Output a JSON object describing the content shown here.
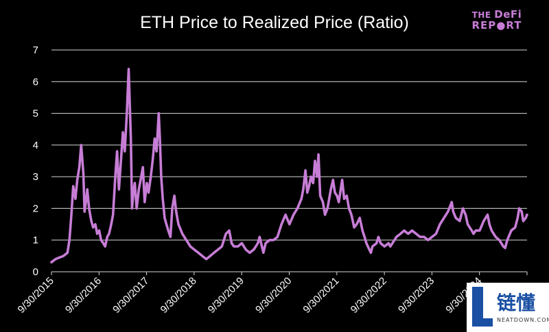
{
  "logo": {
    "line1_prefix": "THE ",
    "line1_brand": "DeFi",
    "line2": "REP●RT"
  },
  "watermark": {
    "cn": "链懂",
    "en": "NEATDOWN.COM"
  },
  "colors": {
    "background": "#000000",
    "line": "#c77dd6",
    "grid": "#d9d9d9",
    "text": "#ffffff"
  },
  "chart_data": {
    "type": "line",
    "title": "ETH Price to Realized Price (Ratio)",
    "xlabel": "",
    "ylabel": "",
    "ylim": [
      0,
      7
    ],
    "yticks": [
      "0",
      "1",
      "2",
      "3",
      "4",
      "5",
      "6",
      "7"
    ],
    "xlim": [
      "2015-09-30",
      "2025-09-30"
    ],
    "xticks": [
      "9/30/2015",
      "9/30/2016",
      "9/30/2017",
      "9/30/2018",
      "9/30/2019",
      "9/30/2020",
      "9/30/2021",
      "9/30/2022",
      "9/30/2023",
      "9/30/2024"
    ],
    "grid": "horizontal",
    "legend": "none",
    "series": [
      {
        "name": "",
        "x": [
          "2015-09-30",
          "2015-10-31",
          "2015-11-30",
          "2015-12-31",
          "2016-01-31",
          "2016-02-15",
          "2016-03-01",
          "2016-03-15",
          "2016-04-01",
          "2016-04-15",
          "2016-05-01",
          "2016-05-15",
          "2016-06-01",
          "2016-06-10",
          "2016-06-20",
          "2016-07-01",
          "2016-07-15",
          "2016-08-01",
          "2016-08-15",
          "2016-09-01",
          "2016-09-15",
          "2016-10-01",
          "2016-10-15",
          "2016-11-01",
          "2016-11-15",
          "2016-12-01",
          "2016-12-15",
          "2017-01-01",
          "2017-01-15",
          "2017-02-01",
          "2017-02-15",
          "2017-03-01",
          "2017-03-15",
          "2017-04-01",
          "2017-04-15",
          "2017-05-01",
          "2017-05-15",
          "2017-06-01",
          "2017-06-10",
          "2017-06-20",
          "2017-07-01",
          "2017-07-15",
          "2017-08-01",
          "2017-08-15",
          "2017-09-01",
          "2017-09-15",
          "2017-10-01",
          "2017-10-15",
          "2017-11-01",
          "2017-11-15",
          "2017-12-01",
          "2017-12-15",
          "2018-01-01",
          "2018-01-10",
          "2018-01-20",
          "2018-02-01",
          "2018-02-15",
          "2018-03-01",
          "2018-03-15",
          "2018-04-01",
          "2018-04-15",
          "2018-05-01",
          "2018-05-15",
          "2018-06-01",
          "2018-07-01",
          "2018-08-01",
          "2018-09-01",
          "2018-10-01",
          "2018-11-01",
          "2018-12-01",
          "2019-01-01",
          "2019-02-01",
          "2019-03-01",
          "2019-04-01",
          "2019-05-01",
          "2019-06-01",
          "2019-06-26",
          "2019-07-15",
          "2019-08-01",
          "2019-09-01",
          "2019-10-01",
          "2019-11-01",
          "2019-12-01",
          "2020-01-01",
          "2020-02-01",
          "2020-02-15",
          "2020-03-15",
          "2020-04-01",
          "2020-05-01",
          "2020-06-01",
          "2020-07-01",
          "2020-08-01",
          "2020-09-01",
          "2020-10-01",
          "2020-11-01",
          "2020-12-01",
          "2021-01-01",
          "2021-01-15",
          "2021-02-01",
          "2021-02-15",
          "2021-03-01",
          "2021-03-15",
          "2021-04-01",
          "2021-04-15",
          "2021-05-01",
          "2021-05-12",
          "2021-05-25",
          "2021-06-15",
          "2021-07-01",
          "2021-07-20",
          "2021-08-15",
          "2021-09-01",
          "2021-09-15",
          "2021-10-01",
          "2021-10-15",
          "2021-11-10",
          "2021-11-25",
          "2021-12-15",
          "2022-01-01",
          "2022-01-20",
          "2022-02-10",
          "2022-03-01",
          "2022-03-25",
          "2022-04-15",
          "2022-05-01",
          "2022-05-15",
          "2022-06-01",
          "2022-06-18",
          "2022-07-01",
          "2022-08-01",
          "2022-08-15",
          "2022-09-01",
          "2022-10-01",
          "2022-11-01",
          "2022-11-15",
          "2022-12-01",
          "2023-01-01",
          "2023-02-01",
          "2023-03-01",
          "2023-04-01",
          "2023-05-01",
          "2023-06-01",
          "2023-07-01",
          "2023-08-01",
          "2023-09-01",
          "2023-10-01",
          "2023-11-01",
          "2023-12-01",
          "2024-01-01",
          "2024-02-01",
          "2024-03-01",
          "2024-03-12",
          "2024-04-01",
          "2024-05-01",
          "2024-05-25",
          "2024-06-15",
          "2024-07-01",
          "2024-08-01",
          "2024-08-15",
          "2024-09-01",
          "2024-10-01",
          "2024-11-01",
          "2024-12-01",
          "2024-12-15",
          "2025-01-01",
          "2025-02-01",
          "2025-03-01",
          "2025-04-01",
          "2025-04-15",
          "2025-05-01",
          "2025-06-01",
          "2025-07-01",
          "2025-07-20",
          "2025-08-01",
          "2025-08-20",
          "2025-09-01",
          "2025-09-20",
          "2025-09-30"
        ],
        "values": [
          0.3,
          0.4,
          0.45,
          0.5,
          0.6,
          1.0,
          1.8,
          2.7,
          2.3,
          2.9,
          3.3,
          4.0,
          3.1,
          1.9,
          2.2,
          2.6,
          2.0,
          1.6,
          1.4,
          1.5,
          1.2,
          1.3,
          1.0,
          0.9,
          0.8,
          1.1,
          1.2,
          1.5,
          1.8,
          3.0,
          3.8,
          2.6,
          3.4,
          4.4,
          3.8,
          5.0,
          6.4,
          4.2,
          2.0,
          2.5,
          2.8,
          2.0,
          2.6,
          2.9,
          3.3,
          2.2,
          2.8,
          2.5,
          3.0,
          3.5,
          4.2,
          3.8,
          5.0,
          4.2,
          3.0,
          2.3,
          1.7,
          1.5,
          1.3,
          1.1,
          2.0,
          2.4,
          1.9,
          1.5,
          1.2,
          1.0,
          0.8,
          0.7,
          0.6,
          0.5,
          0.4,
          0.5,
          0.6,
          0.7,
          0.8,
          1.2,
          1.3,
          0.9,
          0.8,
          0.8,
          0.9,
          0.7,
          0.6,
          0.7,
          0.9,
          1.1,
          0.6,
          0.9,
          1.0,
          1.0,
          1.1,
          1.5,
          1.8,
          1.5,
          1.8,
          2.0,
          2.3,
          2.6,
          3.2,
          2.5,
          2.7,
          3.0,
          2.8,
          3.5,
          3.0,
          3.7,
          2.4,
          2.2,
          1.8,
          2.0,
          2.6,
          2.9,
          2.5,
          2.4,
          2.2,
          2.9,
          2.3,
          2.4,
          2.0,
          1.8,
          1.4,
          1.5,
          1.7,
          1.3,
          1.1,
          0.9,
          0.75,
          0.6,
          0.8,
          0.9,
          1.1,
          0.9,
          0.8,
          0.9,
          0.8,
          0.9,
          1.1,
          1.2,
          1.3,
          1.2,
          1.3,
          1.2,
          1.1,
          1.1,
          1.0,
          1.1,
          1.2,
          1.5,
          1.7,
          1.9,
          2.2,
          1.9,
          1.7,
          1.6,
          2.0,
          1.8,
          1.5,
          1.3,
          1.2,
          1.3,
          1.3,
          1.6,
          1.8,
          1.5,
          1.3,
          1.1,
          1.0,
          0.8,
          0.75,
          1.0,
          1.3,
          1.4,
          1.7,
          2.0,
          1.9,
          1.6,
          1.7,
          1.8
        ]
      }
    ]
  }
}
